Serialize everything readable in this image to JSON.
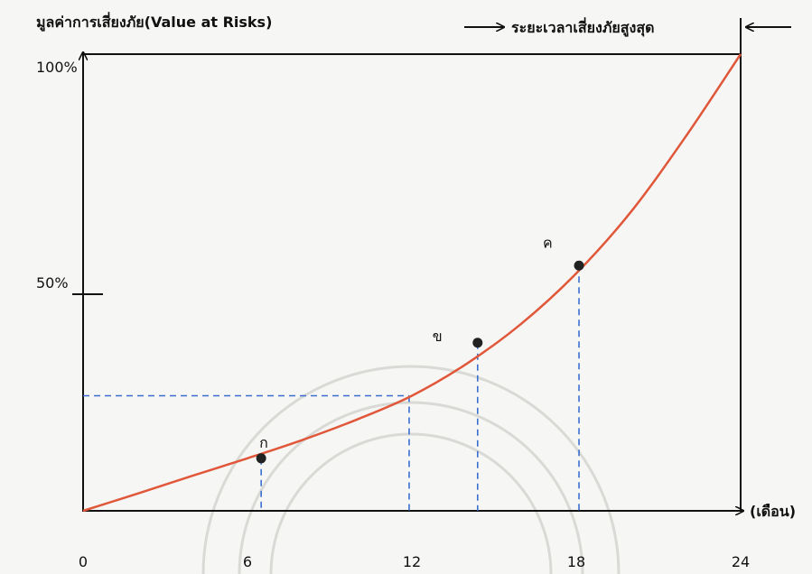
{
  "chart_data": {
    "type": "line",
    "title": "",
    "ylabel": "มูลค่าการเสี่ยงภัย(Value at Risks)",
    "xlabel": "(เดือน)",
    "period_label": "ระยะเวลาเสี่ยงภัยสูงสุด",
    "xlim": [
      0,
      24
    ],
    "ylim": [
      0,
      100
    ],
    "x_ticks": [
      0,
      6,
      12,
      18,
      24
    ],
    "x_tick_labels": [
      "0",
      "6",
      "12",
      "18",
      "24"
    ],
    "y_ticks": [
      50,
      100
    ],
    "y_tick_labels": [
      "50%",
      "100%"
    ],
    "curve_color": "#e0573a",
    "guide_color": "#3a6fd0",
    "series": [
      {
        "x": [
          0,
          2,
          4,
          6,
          8,
          10,
          12,
          14,
          16,
          18,
          20,
          22,
          24
        ],
        "y": [
          0,
          3.8,
          7.7,
          11.5,
          15.5,
          20.0,
          25.2,
          32.2,
          41.0,
          52.0,
          65.5,
          82.0,
          100
        ]
      }
    ],
    "points": [
      {
        "label": "ก",
        "x": 6.5,
        "y": 11.5
      },
      {
        "label": "ข",
        "x": 14.4,
        "y": 36.8
      },
      {
        "label": "ค",
        "x": 18.1,
        "y": 53.7
      }
    ],
    "reference_point": {
      "x": 11.9,
      "y": 25.2
    }
  }
}
